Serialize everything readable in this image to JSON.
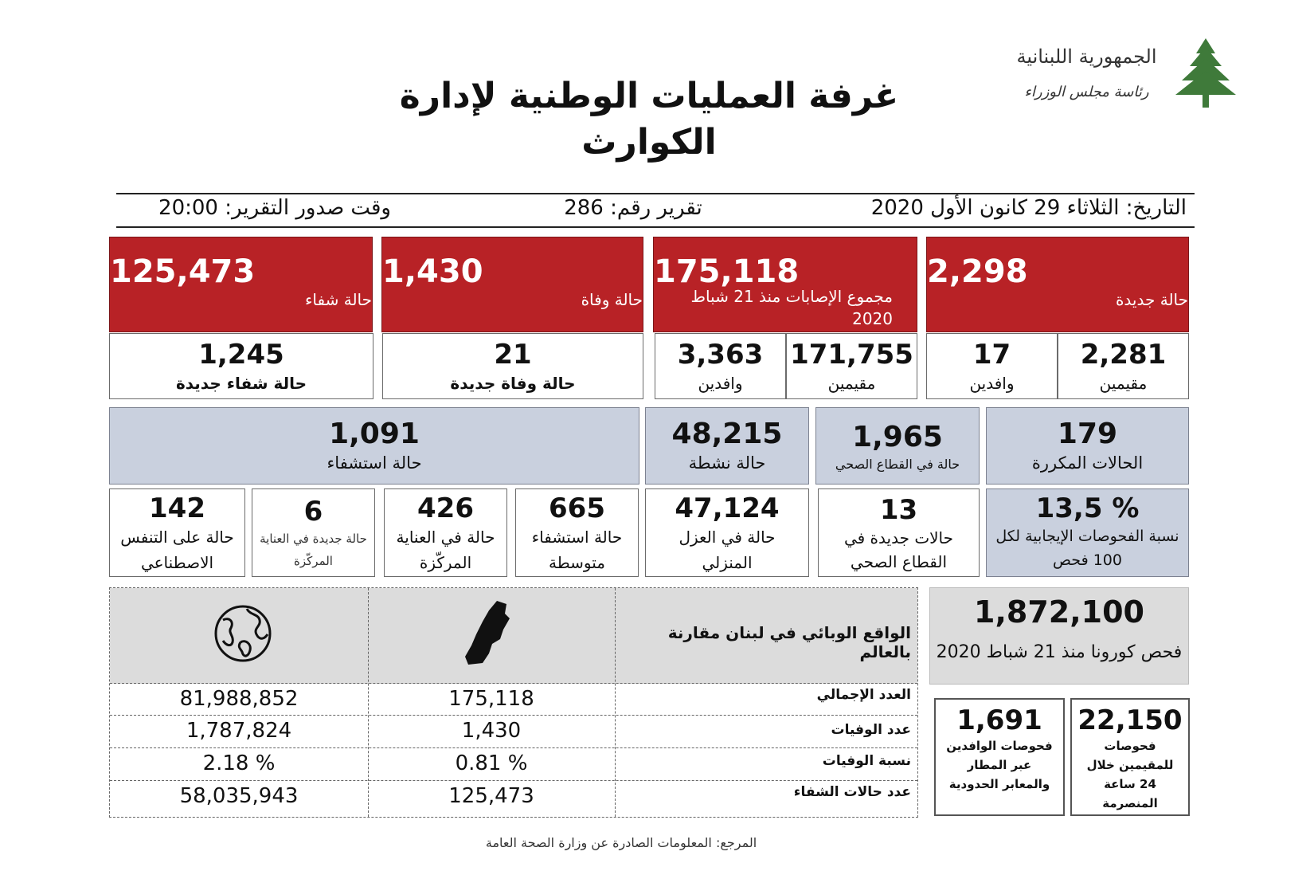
{
  "header": {
    "logo_text_1": "الجمهورية اللبنانية",
    "logo_text_2": "رئاسة مجلس الوزراء",
    "title_line1": "غرفة العمليات الوطنية لإدارة",
    "title_line2": "الكوارث"
  },
  "info_bar": {
    "date": "التاريخ: الثلاثاء 29 كانون الأول 2020",
    "report_no": "تقرير رقم: 286",
    "issue_time": "وقت صدور التقرير: 20:00"
  },
  "red_row": {
    "new_cases": {
      "value": "2,298",
      "label": "حالة جديدة"
    },
    "total_cases": {
      "value": "175,118",
      "label": "مجموع الإصابات منذ 21 شباط 2020"
    },
    "deaths": {
      "value": "1,430",
      "label": "حالة وفاة"
    },
    "recovered": {
      "value": "125,473",
      "label": "حالة شفاء"
    }
  },
  "white_row": {
    "new_residents": {
      "value": "2,281",
      "label": "مقيمين"
    },
    "new_arrivals": {
      "value": "17",
      "label": "وافدين"
    },
    "total_residents": {
      "value": "171,755",
      "label": "مقيمين"
    },
    "total_arrivals": {
      "value": "3,363",
      "label": "وافدين"
    },
    "new_deaths": {
      "value": "21",
      "label": "حالة  وفاة جديدة"
    },
    "new_recovered": {
      "value": "1,245",
      "label": "حالة شفاء جديدة"
    }
  },
  "blue_row": {
    "repeated": {
      "value": "179",
      "label": "الحالات المكررة"
    },
    "health_sector": {
      "value": "1,965",
      "label": "حالة في القطاع الصحي"
    },
    "active": {
      "value": "48,215",
      "label": "حالة نشطة"
    },
    "hospitalized": {
      "value": "1,091",
      "label": "حالة استشفاء"
    }
  },
  "detail_row": {
    "positivity": {
      "value": "13,5 %",
      "label": "نسبة الفحوصات الإيجابية لكل 100 فحص"
    },
    "new_health": {
      "value": "13",
      "label": "حالات  جديدة في القطاع الصحي"
    },
    "home_isolation": {
      "value": "47,124",
      "label": "حالة في العزل المنزلي"
    },
    "moderate": {
      "value": "665",
      "label": "حالة استشفاء متوسطة"
    },
    "icu": {
      "value": "426",
      "label": "حالة في العناية المركّزة"
    },
    "new_icu": {
      "value": "6",
      "label": "حالة جديدة في العناية المركّزة"
    },
    "ventilator": {
      "value": "142",
      "label": "حالة على التنفس الاصطناعي"
    }
  },
  "comparison": {
    "heading": "الواقع الوبائي في لبنان مقارنة بالعالم",
    "lebanon_icon": "lebanon-map-icon",
    "world_icon": "globe-icon",
    "rows": [
      {
        "label": "العدد الإجمالي",
        "lebanon": "175,118",
        "world": "81,988,852"
      },
      {
        "label": "عدد الوفيات",
        "lebanon": "1,430",
        "world": "1,787,824"
      },
      {
        "label": "نسبة الوفيات",
        "lebanon": "0.81 %",
        "world": "2.18 %"
      },
      {
        "label": "عدد حالات الشفاء",
        "lebanon": "125,473",
        "world": "58,035,943"
      }
    ]
  },
  "tests": {
    "total": {
      "value": "1,872,100",
      "label": "فحص كورونا منذ 21 شباط 2020"
    },
    "residents_24h": {
      "value": "22,150",
      "label": "فحوصات للمقيمين خلال 24 ساعة المنصرمة"
    },
    "arrivals": {
      "value": "1,691",
      "label": "فحوصات الوافدين عبر المطار والمعابر الحدودية"
    }
  },
  "footer": {
    "source": "المرجع: المعلومات الصادرة عن وزارة الصحة العامة"
  },
  "colors": {
    "red": "#b82226",
    "blue": "#c9d0de",
    "grey": "#dcdcdc",
    "cedar": "#3f7a3a"
  }
}
